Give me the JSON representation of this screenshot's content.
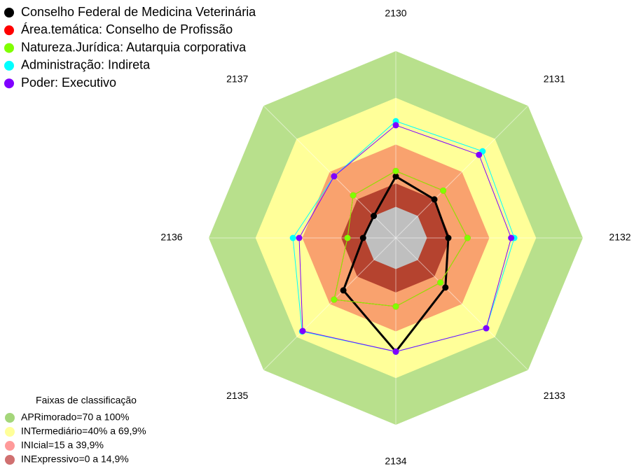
{
  "chart_data": {
    "type": "radar",
    "categories": [
      "2130",
      "2131",
      "2132",
      "2133",
      "2134",
      "2135",
      "2136",
      "2137"
    ],
    "rlim": [
      -20,
      100
    ],
    "series": [
      {
        "name": "Conselho Federal de Medicina Veterinária",
        "color": "#000000",
        "values": [
          19.5,
          15,
          13.7,
          25,
          53,
          27.6,
          1,
          0
        ]
      },
      {
        "name": "Área.temática: Conselho de Profissão",
        "color": "#ff0000",
        "values": [
          23,
          23,
          26,
          20.5,
          24,
          36,
          11,
          18.7
        ]
      },
      {
        "name": "Natureza.Jurídica: Autarquia corporativa",
        "color": "#80ff00",
        "values": [
          23,
          23,
          26,
          20.5,
          24,
          36,
          11,
          18.7
        ]
      },
      {
        "name": "Administração: Indireta",
        "color": "#00ffff",
        "values": [
          55,
          58.7,
          56,
          62,
          53,
          65,
          46,
          36
        ]
      },
      {
        "name": "Poder: Executivo",
        "color": "#8000ff",
        "values": [
          52.4,
          55.5,
          54,
          62,
          53,
          64.5,
          42,
          36
        ]
      }
    ],
    "bands_title": "Faixas de classificação",
    "bands": [
      {
        "label": "APRimorado=70 a 100%",
        "range": [
          70,
          100
        ],
        "color": "#b8e08c",
        "legend_color": "#a4d67a"
      },
      {
        "label": "INTermediário=40% a 69,9%",
        "range": [
          40,
          70
        ],
        "color": "#ffff99",
        "legend_color": "#ffff99"
      },
      {
        "label": "INIcial=15 a 39,9%",
        "range": [
          15,
          40
        ],
        "color": "#f9a26e",
        "legend_color": "#ff9a9a"
      },
      {
        "label": "INExpressivo=0 a 14,9%",
        "range": [
          0,
          15
        ],
        "color": "#b5432f",
        "legend_color": "#d07070"
      }
    ]
  }
}
